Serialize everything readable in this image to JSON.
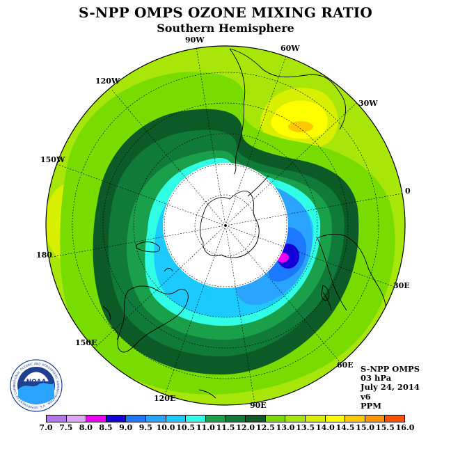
{
  "header": {
    "title": "S-NPP OMPS OZONE MIXING RATIO",
    "subtitle": "Southern Hemisphere"
  },
  "map": {
    "projection": "polar stereographic, south pole centered",
    "longitude_labels": [
      {
        "id": "90w",
        "text": "90W"
      },
      {
        "id": "60w",
        "text": "60W"
      },
      {
        "id": "30w",
        "text": "30W"
      },
      {
        "id": "0",
        "text": "0"
      },
      {
        "id": "30e",
        "text": "30E"
      },
      {
        "id": "60e",
        "text": "60E"
      },
      {
        "id": "90e",
        "text": "90E"
      },
      {
        "id": "120e",
        "text": "120E"
      },
      {
        "id": "150e",
        "text": "150E"
      },
      {
        "id": "180",
        "text": "180"
      },
      {
        "id": "150w",
        "text": "150W"
      },
      {
        "id": "120w",
        "text": "120W"
      }
    ],
    "polar_night_mask": "white (no data)",
    "colors": {
      "no_data": "#ffffff",
      "coastline": "#000000",
      "grid": "#000000"
    }
  },
  "info": {
    "instrument": "S-NPP OMPS",
    "level": "03 hPa",
    "date": "July 24, 2014",
    "version": "v6",
    "units": "PPM"
  },
  "colorbar": {
    "levels": [
      "7.0",
      "7.5",
      "8.0",
      "8.5",
      "9.0",
      "9.5",
      "10.0",
      "10.5",
      "11.0",
      "11.5",
      "12.0",
      "12.5",
      "13.0",
      "13.5",
      "14.0",
      "14.5",
      "15.0",
      "15.5",
      "16.0"
    ],
    "colors": [
      "#b378f0",
      "#d9a8f5",
      "#f000f0",
      "#1400d8",
      "#1c78ff",
      "#2aa4ff",
      "#1ccaff",
      "#30ffe6",
      "#1aa04a",
      "#107a3a",
      "#0c5a26",
      "#78dc00",
      "#a8e60a",
      "#d8f000",
      "#ffff00",
      "#ffc800",
      "#ff9600",
      "#ff5000",
      "#ff0000",
      "#b40000",
      "#7a5a3a"
    ]
  },
  "logo": {
    "text": "NOAA",
    "ring_text": "NATIONAL OCEANIC AND ATMOSPHERIC ADMINISTRATION · U.S. DEPARTMENT OF COMMERCE"
  }
}
